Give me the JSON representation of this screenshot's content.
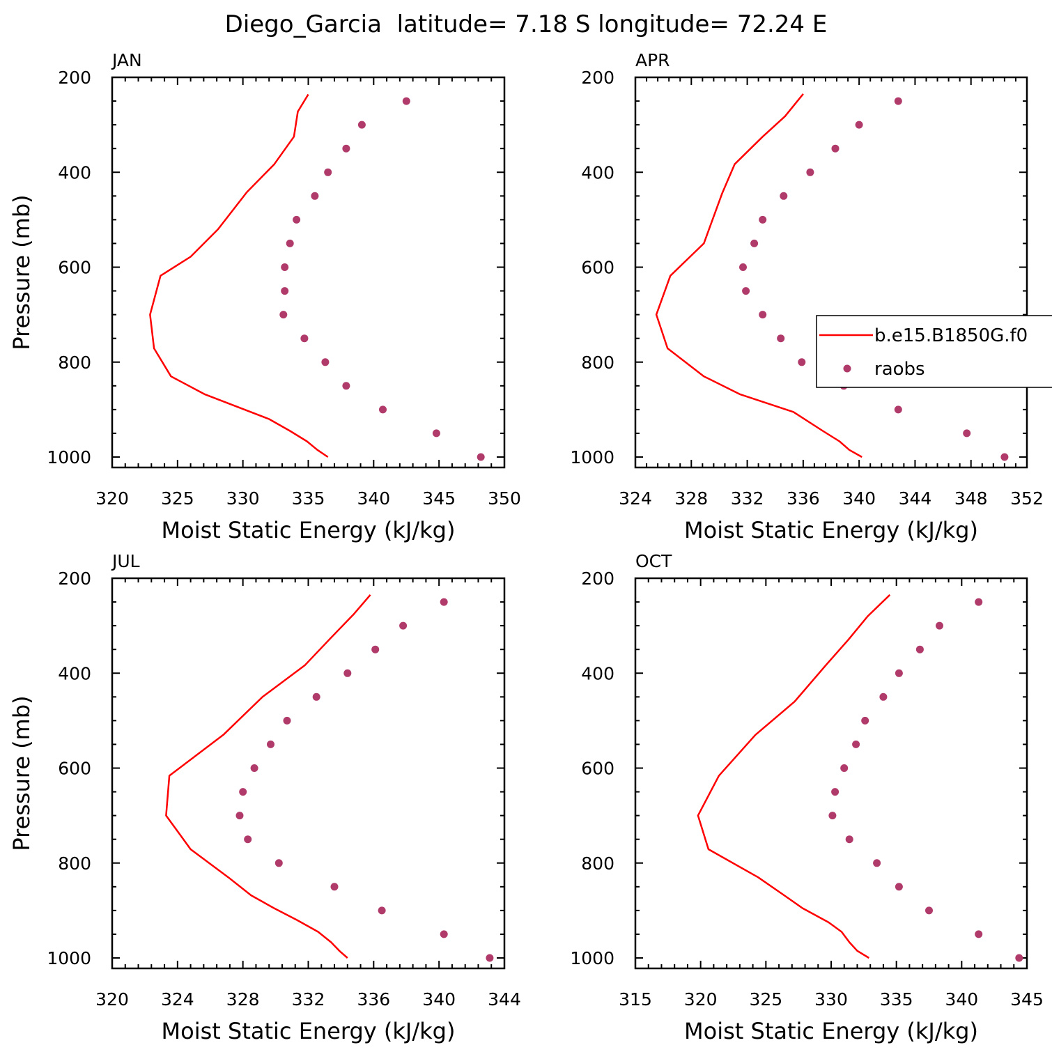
{
  "figure_title": "Diego_Garcia  latitude= 7.18 S longitude= 72.24 E",
  "colors": {
    "model_line": "#ff0000",
    "raobs_marker": "#b03a6a",
    "axes": "#000000"
  },
  "legend": {
    "items": [
      {
        "label": "b.e15.B1850G.f0",
        "kind": "line",
        "color": "#ff0000"
      },
      {
        "label": "raobs",
        "kind": "marker",
        "color": "#b03a6a"
      }
    ],
    "panel": "APR",
    "placement": "right, clipped at figure edge"
  },
  "chart_data": [
    {
      "type": "line",
      "panel_title": "JAN",
      "xlabel": "Moist Static Energy (kJ/kg)",
      "ylabel": "Pressure (mb)",
      "xlim": [
        320,
        350
      ],
      "ylim": [
        1000,
        200
      ],
      "xticks": [
        320,
        325,
        330,
        335,
        340,
        345,
        350
      ],
      "yticks": [
        200,
        400,
        600,
        800,
        1000
      ],
      "series": [
        {
          "name": "b.e15.B1850G.f0",
          "style": "line",
          "points": [
            [
              336.5,
              1000
            ],
            [
              335.7,
              985
            ],
            [
              334.9,
              967
            ],
            [
              333.6,
              945
            ],
            [
              332,
              920
            ],
            [
              327.1,
              868
            ],
            [
              324.5,
              830
            ],
            [
              323.2,
              771
            ],
            [
              322.9,
              700
            ],
            [
              323.7,
              618
            ],
            [
              326,
              578
            ],
            [
              328.1,
              520
            ],
            [
              330.3,
              442
            ],
            [
              332.4,
              383
            ],
            [
              333.9,
              325
            ],
            [
              334.2,
              272
            ],
            [
              335,
              236
            ]
          ]
        },
        {
          "name": "raobs",
          "style": "marker",
          "points": [
            [
              348.2,
              1000
            ],
            [
              344.8,
              950
            ],
            [
              340.7,
              900
            ],
            [
              337.9,
              850
            ],
            [
              336.3,
              800
            ],
            [
              334.7,
              750
            ],
            [
              333.1,
              700
            ],
            [
              333.2,
              650
            ],
            [
              333.2,
              600
            ],
            [
              333.6,
              550
            ],
            [
              334.1,
              500
            ],
            [
              335.5,
              450
            ],
            [
              336.5,
              400
            ],
            [
              337.9,
              350
            ],
            [
              339.1,
              300
            ],
            [
              342.5,
              250
            ]
          ]
        }
      ]
    },
    {
      "type": "line",
      "panel_title": "APR",
      "xlabel": "Moist Static Energy (kJ/kg)",
      "ylabel": "",
      "xlim": [
        324,
        352
      ],
      "ylim": [
        1000,
        200
      ],
      "xticks": [
        324,
        328,
        332,
        336,
        340,
        344,
        348,
        352
      ],
      "yticks": [
        200,
        400,
        600,
        800,
        1000
      ],
      "series": [
        {
          "name": "b.e15.B1850G.f0",
          "style": "line",
          "points": [
            [
              340.2,
              1000
            ],
            [
              339.3,
              985
            ],
            [
              338.6,
              967
            ],
            [
              337.4,
              945
            ],
            [
              335.3,
              905
            ],
            [
              331.5,
              868
            ],
            [
              328.9,
              830
            ],
            [
              326.3,
              771
            ],
            [
              325.5,
              700
            ],
            [
              326.5,
              618
            ],
            [
              328.9,
              550
            ],
            [
              330.2,
              445
            ],
            [
              331.1,
              383
            ],
            [
              333.1,
              325
            ],
            [
              334.7,
              282
            ],
            [
              336,
              235
            ]
          ]
        },
        {
          "name": "raobs",
          "style": "marker",
          "points": [
            [
              350.4,
              1000
            ],
            [
              347.7,
              950
            ],
            [
              342.8,
              900
            ],
            [
              338.9,
              850
            ],
            [
              335.9,
              800
            ],
            [
              334.4,
              750
            ],
            [
              333.1,
              700
            ],
            [
              331.9,
              650
            ],
            [
              331.7,
              600
            ],
            [
              332.5,
              550
            ],
            [
              333.1,
              500
            ],
            [
              334.6,
              450
            ],
            [
              336.5,
              400
            ],
            [
              338.3,
              350
            ],
            [
              340,
              300
            ],
            [
              342.8,
              250
            ]
          ]
        }
      ]
    },
    {
      "type": "line",
      "panel_title": "JUL",
      "xlabel": "Moist Static Energy (kJ/kg)",
      "ylabel": "Pressure (mb)",
      "xlim": [
        320,
        344
      ],
      "ylim": [
        1000,
        200
      ],
      "xticks": [
        320,
        324,
        328,
        332,
        336,
        340,
        344
      ],
      "yticks": [
        200,
        400,
        600,
        800,
        1000
      ],
      "series": [
        {
          "name": "b.e15.B1850G.f0",
          "style": "line",
          "points": [
            [
              334.4,
              1000
            ],
            [
              333.9,
              985
            ],
            [
              333.4,
              967
            ],
            [
              332.6,
              945
            ],
            [
              331.3,
              920
            ],
            [
              329.9,
              895
            ],
            [
              328.5,
              868
            ],
            [
              327.1,
              830
            ],
            [
              324.8,
              771
            ],
            [
              323.3,
              700
            ],
            [
              323.5,
              616
            ],
            [
              326.8,
              530
            ],
            [
              329.2,
              450
            ],
            [
              331.8,
              383
            ],
            [
              333.4,
              325
            ],
            [
              334.8,
              275
            ],
            [
              335.8,
              235
            ]
          ]
        },
        {
          "name": "raobs",
          "style": "marker",
          "points": [
            [
              343.1,
              1000
            ],
            [
              340.3,
              950
            ],
            [
              336.5,
              900
            ],
            [
              333.6,
              850
            ],
            [
              330.2,
              800
            ],
            [
              328.3,
              750
            ],
            [
              327.8,
              700
            ],
            [
              328,
              650
            ],
            [
              328.7,
              600
            ],
            [
              329.7,
              550
            ],
            [
              330.7,
              500
            ],
            [
              332.5,
              450
            ],
            [
              334.4,
              400
            ],
            [
              336.1,
              350
            ],
            [
              337.8,
              300
            ],
            [
              340.3,
              250
            ]
          ]
        }
      ]
    },
    {
      "type": "line",
      "panel_title": "OCT",
      "xlabel": "Moist Static Energy (kJ/kg)",
      "ylabel": "",
      "xlim": [
        315,
        345
      ],
      "ylim": [
        1000,
        200
      ],
      "xticks": [
        315,
        320,
        325,
        330,
        335,
        340,
        345
      ],
      "yticks": [
        200,
        400,
        600,
        800,
        1000
      ],
      "series": [
        {
          "name": "b.e15.B1850G.f0",
          "style": "line",
          "points": [
            [
              332.9,
              1000
            ],
            [
              332,
              985
            ],
            [
              331.4,
              967
            ],
            [
              330.8,
              945
            ],
            [
              329.8,
              925
            ],
            [
              327.8,
              895
            ],
            [
              326.4,
              868
            ],
            [
              324.4,
              830
            ],
            [
              320.6,
              771
            ],
            [
              319.8,
              700
            ],
            [
              321.4,
              616
            ],
            [
              324.2,
              530
            ],
            [
              327.2,
              460
            ],
            [
              329.6,
              383
            ],
            [
              331.3,
              330
            ],
            [
              332.8,
              280
            ],
            [
              334.5,
              235
            ]
          ]
        },
        {
          "name": "raobs",
          "style": "marker",
          "points": [
            [
              344.4,
              1000
            ],
            [
              341.3,
              950
            ],
            [
              337.5,
              900
            ],
            [
              335.2,
              850
            ],
            [
              333.5,
              800
            ],
            [
              331.4,
              750
            ],
            [
              330.1,
              700
            ],
            [
              330.3,
              650
            ],
            [
              331,
              600
            ],
            [
              331.9,
              550
            ],
            [
              332.6,
              500
            ],
            [
              334,
              450
            ],
            [
              335.2,
              400
            ],
            [
              336.8,
              350
            ],
            [
              338.3,
              300
            ],
            [
              341.3,
              250
            ]
          ]
        }
      ]
    }
  ]
}
